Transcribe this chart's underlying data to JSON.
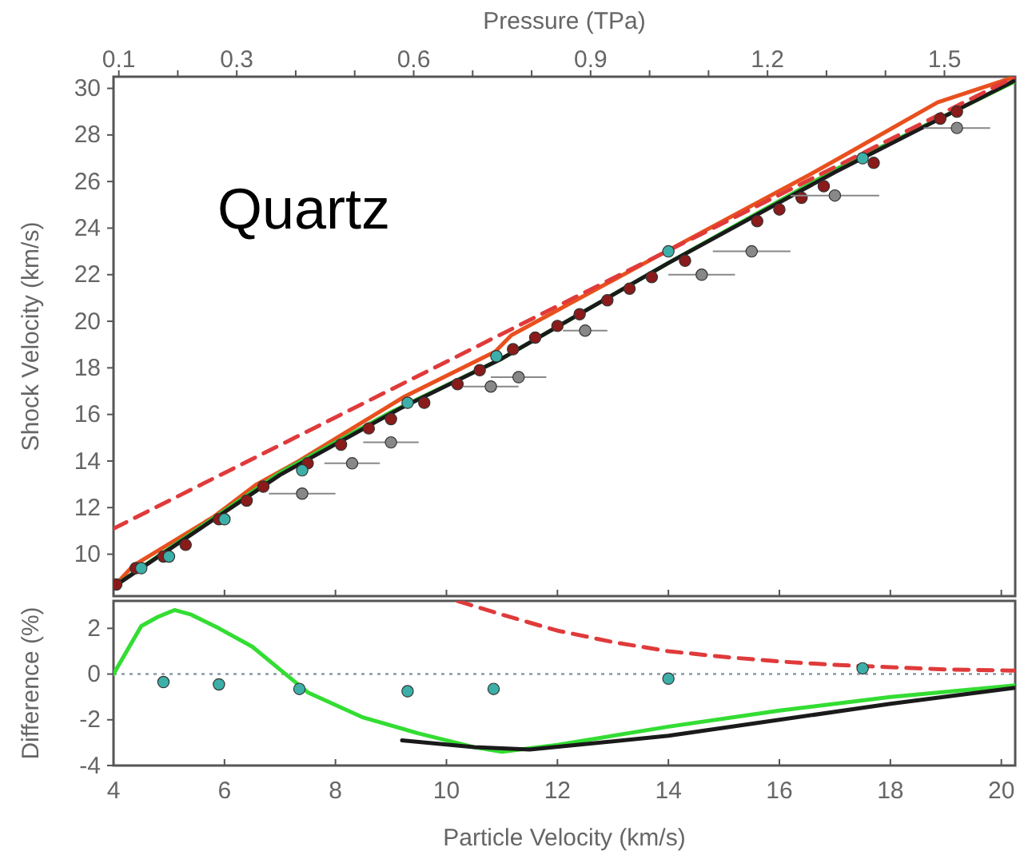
{
  "chart_data": [
    {
      "type": "line",
      "ylabel": "Shock Velocity (km/s)",
      "x2label": "Pressure (TPa)",
      "annotations": [
        "Quartz"
      ],
      "xlim": [
        4,
        20.25
      ],
      "xticks": [
        4,
        6,
        8,
        10,
        12,
        14,
        16,
        18,
        20
      ],
      "ylim": [
        8.2,
        30.5
      ],
      "yticks": [
        10,
        12,
        14,
        16,
        18,
        20,
        22,
        24,
        26,
        28,
        30
      ],
      "x2lim": [
        0.091,
        1.62
      ],
      "x2ticks": [
        0.1,
        {
          "value": 0.2,
          "label": null
        },
        0.3,
        {
          "value": 0.4,
          "label": null
        },
        {
          "value": 0.5,
          "label": null
        },
        0.6,
        {
          "value": 0.7,
          "label": null
        },
        {
          "value": 0.8,
          "label": null
        },
        0.9,
        {
          "value": 1.0,
          "label": null
        },
        {
          "value": 1.1,
          "label": null
        },
        1.2,
        {
          "value": 1.3,
          "label": null
        },
        {
          "value": 1.4,
          "label": null
        },
        1.5
      ],
      "tick_labels": "y",
      "grid": false,
      "series": [
        {
          "type": "line",
          "color": "#e8501e",
          "line_style": "solid",
          "x": [
            4,
            4.35,
            5.8,
            6.56,
            7.34,
            9.24,
            10.88,
            11.17,
            13.96,
            16.55,
            17.3,
            18.85,
            20.25
          ],
          "values": [
            8.6,
            9.5,
            11.6,
            12.97,
            14.0,
            16.76,
            18.7,
            19.4,
            23.0,
            26.3,
            27.3,
            29.4,
            30.5
          ]
        },
        {
          "type": "line",
          "color": "#33cc33",
          "line_style": "solid",
          "x": [
            4,
            5.1,
            7,
            9,
            11,
            14,
            17,
            20.25
          ],
          "values": [
            8.6,
            10.4,
            13.5,
            16.1,
            18.4,
            22.5,
            26.5,
            30.3
          ]
        },
        {
          "type": "line",
          "color": "#1a1a1a",
          "line_style": "solid",
          "x": [
            4,
            7,
            9.2,
            11,
            14,
            17,
            20.25
          ],
          "values": [
            8.6,
            13.4,
            16.3,
            18.4,
            22.5,
            26.4,
            30.35
          ]
        },
        {
          "type": "line",
          "color": "#e03a3a",
          "line_style": "dashed",
          "x": [
            4,
            20.25
          ],
          "values": [
            11.1,
            30.5
          ]
        },
        {
          "type": "scatter",
          "color": "#8b1a1a",
          "marker": "circle",
          "x": [
            4.05,
            4.4,
            4.9,
            5.3,
            5.9,
            6.4,
            6.7,
            7.5,
            8.1,
            8.6,
            9.0,
            9.6,
            10.2,
            10.6,
            11.2,
            11.6,
            12.0,
            12.4,
            12.9,
            13.3,
            13.7,
            14.3,
            15.6,
            16.0,
            16.4,
            16.8,
            17.7,
            18.9,
            19.2
          ],
          "values": [
            8.7,
            9.4,
            9.9,
            10.4,
            11.5,
            12.3,
            12.9,
            13.9,
            14.7,
            15.4,
            15.8,
            16.5,
            17.3,
            17.9,
            18.8,
            19.3,
            19.8,
            20.3,
            20.9,
            21.4,
            21.9,
            22.6,
            24.3,
            24.8,
            25.3,
            25.8,
            26.8,
            28.7,
            29.0
          ]
        },
        {
          "type": "scatter",
          "color": "#3cb0a8",
          "marker": "circle",
          "x": [
            4.5,
            5.0,
            6.0,
            7.4,
            9.3,
            10.9,
            14.0,
            17.5
          ],
          "values": [
            9.4,
            9.9,
            11.5,
            13.6,
            16.5,
            18.5,
            23.0,
            27.0
          ]
        },
        {
          "type": "scatter",
          "color": "#888888",
          "marker": "circle",
          "x": [
            7.4,
            8.3,
            9.0,
            10.8,
            11.3,
            12.5,
            14.6,
            15.5,
            17.0,
            19.2
          ],
          "values": [
            12.6,
            13.9,
            14.8,
            17.2,
            17.6,
            19.6,
            22.0,
            23.0,
            25.4,
            28.3
          ],
          "xerrors": [
            0.6,
            0.5,
            0.5,
            0.5,
            0.5,
            0.4,
            0.6,
            0.7,
            0.8,
            0.6
          ]
        }
      ]
    },
    {
      "type": "line",
      "xlabel": "Particle Velocity (km/s)",
      "ylabel": "Difference (%)",
      "xlim": [
        4,
        20.25
      ],
      "xticks": [
        4,
        6,
        8,
        10,
        12,
        14,
        16,
        18,
        20
      ],
      "ylim": [
        -4,
        3.2
      ],
      "yticks": [
        -4,
        -2,
        0,
        2
      ],
      "grid": false,
      "ref_lines": [
        {
          "axis": "y",
          "value": 0,
          "label": null,
          "color": "#8899aa",
          "line_style": "dotted"
        }
      ],
      "series": [
        {
          "type": "line",
          "color": "#33dd33",
          "line_style": "solid",
          "x": [
            4,
            4.5,
            4.8,
            5.1,
            5.4,
            5.9,
            6.5,
            7,
            7.5,
            8.5,
            9.5,
            10.5,
            11,
            12,
            14,
            16,
            18,
            20.25
          ],
          "values": [
            0,
            2.1,
            2.5,
            2.8,
            2.6,
            2.0,
            1.2,
            0.2,
            -0.8,
            -1.9,
            -2.6,
            -3.2,
            -3.4,
            -3.1,
            -2.3,
            -1.6,
            -1.0,
            -0.5
          ]
        },
        {
          "type": "line",
          "color": "#1a1a1a",
          "line_style": "solid",
          "x": [
            9.2,
            10.5,
            11.5,
            14,
            16,
            18,
            20.25
          ],
          "values": [
            -2.9,
            -3.2,
            -3.3,
            -2.7,
            -2.0,
            -1.3,
            -0.6
          ]
        },
        {
          "type": "line",
          "color": "#e03a3a",
          "line_style": "dashed",
          "x": [
            10.2,
            11,
            12,
            13,
            14,
            15,
            16,
            17,
            18,
            19,
            20.25
          ],
          "values": [
            3.2,
            2.6,
            1.9,
            1.4,
            1.0,
            0.75,
            0.55,
            0.4,
            0.3,
            0.2,
            0.15
          ]
        },
        {
          "type": "scatter",
          "color": "#3cb0a8",
          "marker": "circle",
          "x": [
            4.9,
            5.9,
            7.35,
            9.3,
            10.85,
            14,
            17.5
          ],
          "values": [
            -0.35,
            -0.45,
            -0.65,
            -0.75,
            -0.65,
            -0.2,
            0.25
          ]
        }
      ]
    }
  ]
}
